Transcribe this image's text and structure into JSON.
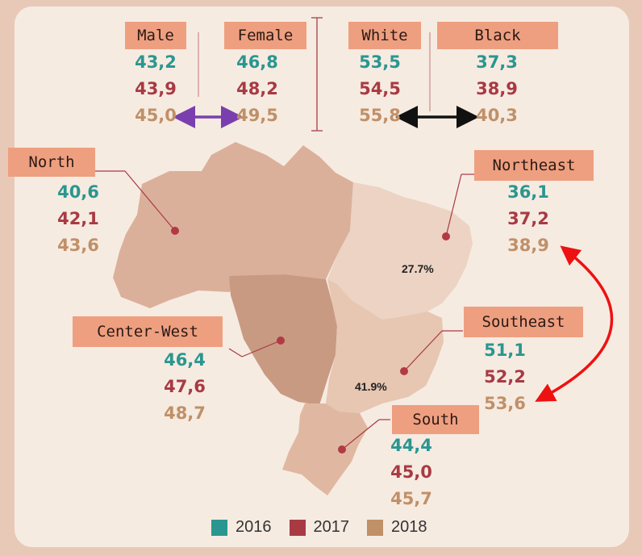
{
  "groups": {
    "male": {
      "label": "Male",
      "v2016": "43,2",
      "v2017": "43,9",
      "v2018": "45,0"
    },
    "female": {
      "label": "Female",
      "v2016": "46,8",
      "v2017": "48,2",
      "v2018": "49,5"
    },
    "white": {
      "label": "White",
      "v2016": "53,5",
      "v2017": "54,5",
      "v2018": "55,8"
    },
    "black": {
      "label": "Black",
      "v2016": "37,3",
      "v2017": "38,9",
      "v2018": "40,3"
    }
  },
  "regions": {
    "north": {
      "label": "North",
      "v2016": "40,6",
      "v2017": "42,1",
      "v2018": "43,6"
    },
    "northeast": {
      "label": "Northeast",
      "v2016": "36,1",
      "v2017": "37,2",
      "v2018": "38,9"
    },
    "centerwest": {
      "label": "Center-West",
      "v2016": "46,4",
      "v2017": "47,6",
      "v2018": "48,7"
    },
    "southeast": {
      "label": "Southeast",
      "v2016": "51,1",
      "v2017": "52,2",
      "v2018": "53,6"
    },
    "south": {
      "label": "South",
      "v2016": "44,4",
      "v2017": "45,0",
      "v2018": "45,7"
    }
  },
  "map_annotations": {
    "northeast_pct": "27.7%",
    "southeast_pct": "41.9%"
  },
  "legend": [
    {
      "label": "2016",
      "color": "#2a9690"
    },
    {
      "label": "2017",
      "color": "#a83a44"
    },
    {
      "label": "2018",
      "color": "#c09068"
    }
  ],
  "colors": {
    "background": "#e8c9b8",
    "panel": "#f6ebe1",
    "label_box": "#ee9f80",
    "map_base": "#dbb09a",
    "map_center_west": "#c99a82",
    "map_northeast": "#ecd3c3",
    "map_south_east": "#e7c6b2",
    "arrow_gender": "#7a3fae",
    "arrow_race": "#111111",
    "arrow_regions": "#ee1111"
  }
}
